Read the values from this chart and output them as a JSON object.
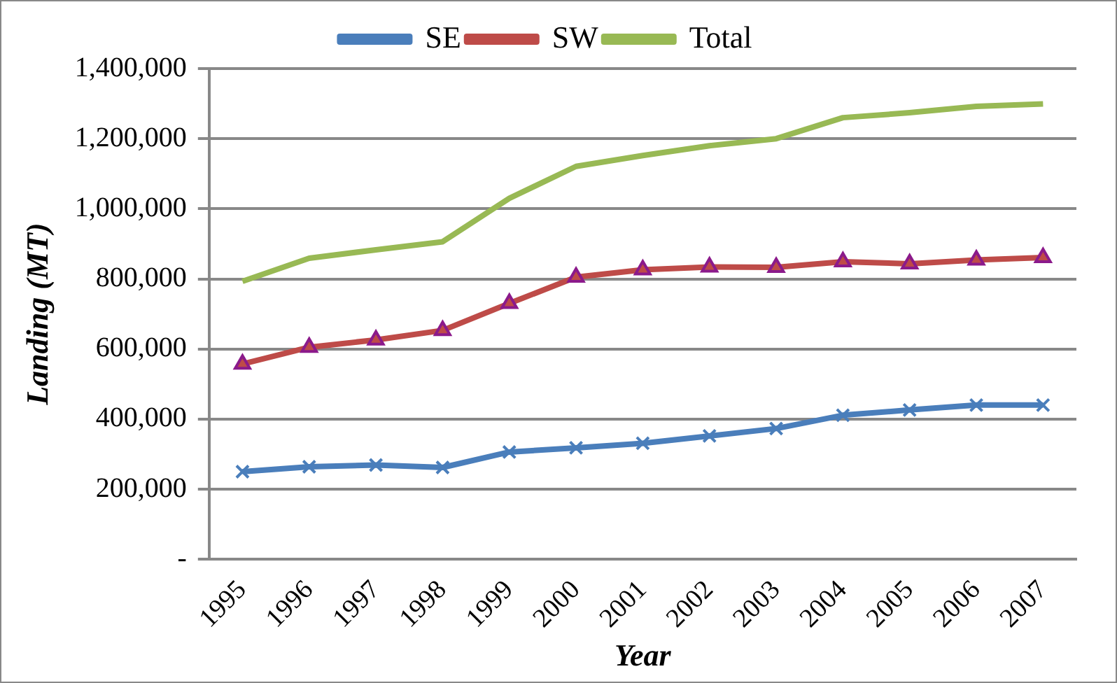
{
  "chart_data": {
    "type": "line",
    "xlabel": "Year",
    "ylabel": "Landing (MT)",
    "categories": [
      "1995",
      "1996",
      "1997",
      "1998",
      "1999",
      "2000",
      "2001",
      "2002",
      "2003",
      "2004",
      "2005",
      "2006",
      "2007"
    ],
    "series": [
      {
        "name": "SE",
        "color": "#4a7ebb",
        "marker": "cross",
        "values": [
          250000,
          264000,
          269000,
          262000,
          306000,
          318000,
          331000,
          352000,
          373000,
          411000,
          426000,
          440000,
          440000
        ]
      },
      {
        "name": "SW",
        "color": "#be4b48",
        "marker": "triangle",
        "values": [
          557000,
          605000,
          626000,
          653000,
          730000,
          805000,
          826000,
          834000,
          833000,
          849000,
          843000,
          854000,
          861000
        ]
      },
      {
        "name": "Total",
        "color": "#98b954",
        "marker": "none",
        "values": [
          793000,
          859000,
          883000,
          906000,
          1030000,
          1121000,
          1152000,
          1180000,
          1200000,
          1260000,
          1274000,
          1292000,
          1299000
        ]
      }
    ],
    "ylim": [
      0,
      1400000
    ],
    "yticks": [
      {
        "value": 0,
        "label": "-"
      },
      {
        "value": 200000,
        "label": "200,000"
      },
      {
        "value": 400000,
        "label": "400,000"
      },
      {
        "value": 600000,
        "label": "600,000"
      },
      {
        "value": 800000,
        "label": "800,000"
      },
      {
        "value": 1000000,
        "label": "1,000,000"
      },
      {
        "value": 1200000,
        "label": "1,200,000"
      },
      {
        "value": 1400000,
        "label": "1,400,000"
      }
    ],
    "grid": "y",
    "legend": "top"
  }
}
